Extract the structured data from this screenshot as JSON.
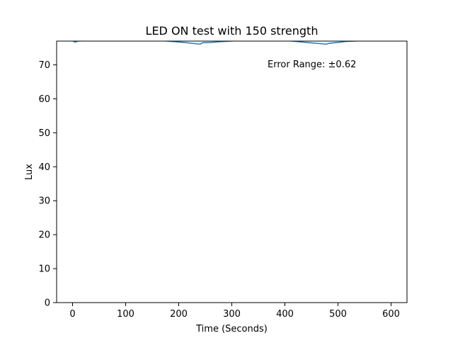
{
  "chart_data": {
    "type": "line",
    "title": "LED ON test with 150 strength",
    "xlabel": "Time (Seconds)",
    "ylabel": "Lux",
    "xlim": [
      -30,
      630
    ],
    "ylim": [
      0,
      77
    ],
    "x_ticks": [
      0,
      100,
      200,
      300,
      400,
      500,
      600
    ],
    "y_ticks": [
      0,
      10,
      20,
      30,
      40,
      50,
      60,
      70
    ],
    "grid": false,
    "legend": "none",
    "annotation": "Error Range: ±0.62",
    "series": [
      {
        "color": "#1f77b4",
        "x": [
          0,
          5,
          10,
          40,
          80,
          120,
          170,
          210,
          240,
          245,
          260,
          275,
          320,
          360,
          400,
          440,
          478,
          485,
          500,
          515,
          560,
          600
        ],
        "y": [
          77.1,
          76.7,
          77.0,
          77.2,
          77.2,
          77.2,
          77.1,
          76.6,
          76.1,
          76.5,
          76.6,
          76.8,
          77.2,
          77.2,
          77.2,
          76.6,
          76.1,
          76.4,
          76.6,
          76.9,
          77.2,
          77.2
        ]
      }
    ]
  }
}
